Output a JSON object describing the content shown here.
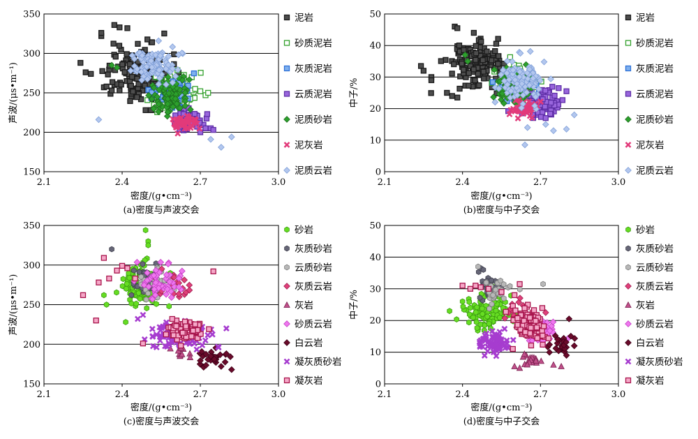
{
  "chart_data": [
    {
      "id": "a",
      "type": "scatter",
      "caption": "(a)密度与声波交会",
      "xlabel": "密度/(g•cm⁻³)",
      "ylabel": "声波/(μs•m⁻¹)",
      "xlim": [
        2.1,
        3.0
      ],
      "ylim": [
        150,
        350
      ],
      "xticks": [
        "2.1",
        "2.4",
        "2.7",
        "3.0"
      ],
      "yticks": [
        "150",
        "200",
        "250",
        "300",
        "350"
      ],
      "grid": "horizontal",
      "legend_position": "right",
      "series": [
        {
          "name": "泥岩",
          "marker": "square",
          "fill": "#4d4d4d",
          "stroke": "#1a1a1a",
          "center": [
            2.46,
            275
          ],
          "spread": [
            0.08,
            25
          ],
          "count": 150,
          "points": [
            [
              2.32,
              322
            ],
            [
              2.32,
              326
            ],
            [
              2.37,
              336
            ],
            [
              2.39,
              333
            ],
            [
              2.42,
              332
            ],
            [
              2.24,
              288
            ],
            [
              2.26,
              276
            ],
            [
              2.28,
              274
            ],
            [
              2.33,
              257
            ],
            [
              2.34,
              258
            ],
            [
              2.36,
              253
            ],
            [
              2.39,
              253
            ],
            [
              2.49,
              228
            ],
            [
              2.51,
              228
            ],
            [
              2.55,
              232
            ],
            [
              2.6,
              265
            ],
            [
              2.62,
              259
            ]
          ]
        },
        {
          "name": "砂质泥岩",
          "marker": "square",
          "fill": "#ffffff",
          "stroke": "#33a02c",
          "center": [
            2.6,
            250
          ],
          "spread": [
            0.05,
            14
          ],
          "count": 110,
          "points": [
            [
              2.7,
              252
            ],
            [
              2.72,
              247
            ],
            [
              2.73,
              250
            ],
            [
              2.68,
              255
            ]
          ]
        },
        {
          "name": "灰质泥岩",
          "marker": "square",
          "fill": "#7fb0ee",
          "stroke": "#2b6fd6",
          "center": [
            2.6,
            250
          ],
          "spread": [
            0.05,
            14
          ],
          "count": 50,
          "points": []
        },
        {
          "name": "云质泥岩",
          "marker": "square",
          "fill": "#9966dd",
          "stroke": "#5e2ea6",
          "center": [
            2.65,
            215
          ],
          "spread": [
            0.04,
            8
          ],
          "count": 70,
          "points": [
            [
              2.72,
              205
            ],
            [
              2.74,
              205
            ],
            [
              2.75,
              203
            ],
            [
              2.7,
              200
            ]
          ]
        },
        {
          "name": "泥质砂岩",
          "marker": "diamond",
          "fill": "#2ca02c",
          "stroke": "#1f6e1f",
          "center": [
            2.58,
            248
          ],
          "spread": [
            0.05,
            14
          ],
          "count": 90,
          "points": [
            [
              2.36,
              285
            ],
            [
              2.38,
              282
            ]
          ]
        },
        {
          "name": "泥灰岩",
          "marker": "x",
          "fill": "#e23a7a",
          "stroke": "#e23a7a",
          "center": [
            2.64,
            212
          ],
          "spread": [
            0.03,
            6
          ],
          "count": 50,
          "points": []
        },
        {
          "name": "泥质云岩",
          "marker": "diamond",
          "fill": "#b3c7ee",
          "stroke": "#7f9fd8",
          "center": [
            2.52,
            285
          ],
          "spread": [
            0.06,
            15
          ],
          "count": 110,
          "points": [
            [
              2.31,
              216
            ],
            [
              2.74,
              191
            ],
            [
              2.78,
              181
            ],
            [
              2.82,
              194
            ]
          ]
        }
      ]
    },
    {
      "id": "b",
      "type": "scatter",
      "caption": "(b)密度与中子交会",
      "xlabel": "密度/(g•cm⁻³)",
      "ylabel": "中子/%",
      "xlim": [
        2.1,
        3.0
      ],
      "ylim": [
        0,
        50
      ],
      "xticks": [
        "2.1",
        "2.4",
        "2.7",
        "3.0"
      ],
      "yticks": [
        "0",
        "10",
        "20",
        "30",
        "40",
        "50"
      ],
      "grid": "horizontal",
      "legend_position": "right",
      "series": [
        {
          "name": "泥岩",
          "marker": "square",
          "fill": "#4d4d4d",
          "stroke": "#1a1a1a",
          "center": [
            2.45,
            34
          ],
          "spread": [
            0.07,
            4.5
          ],
          "count": 150,
          "points": [
            [
              2.37,
              46
            ],
            [
              2.38,
              45.5
            ],
            [
              2.24,
              33.5
            ],
            [
              2.25,
              32
            ],
            [
              2.28,
              30
            ],
            [
              2.28,
              29
            ],
            [
              2.34,
              25
            ],
            [
              2.36,
              24
            ],
            [
              2.38,
              23.5
            ]
          ]
        },
        {
          "name": "砂质泥岩",
          "marker": "square",
          "fill": "#ffffff",
          "stroke": "#33a02c",
          "center": [
            2.6,
            28
          ],
          "spread": [
            0.05,
            3
          ],
          "count": 90,
          "points": []
        },
        {
          "name": "灰质泥岩",
          "marker": "square",
          "fill": "#7fb0ee",
          "stroke": "#2b6fd6",
          "center": [
            2.62,
            27
          ],
          "spread": [
            0.05,
            3
          ],
          "count": 40,
          "points": []
        },
        {
          "name": "云质泥岩",
          "marker": "square",
          "fill": "#9966dd",
          "stroke": "#5e2ea6",
          "center": [
            2.7,
            22
          ],
          "spread": [
            0.05,
            3
          ],
          "count": 70,
          "points": [
            [
              2.77,
              26.5
            ],
            [
              2.8,
              25.5
            ],
            [
              2.67,
              18
            ],
            [
              2.72,
              17
            ]
          ]
        },
        {
          "name": "泥质砂岩",
          "marker": "diamond",
          "fill": "#2ca02c",
          "stroke": "#1f6e1f",
          "center": [
            2.6,
            27
          ],
          "spread": [
            0.05,
            3.5
          ],
          "count": 90,
          "points": [
            [
              2.41,
              37
            ],
            [
              2.42,
              35
            ]
          ]
        },
        {
          "name": "泥灰岩",
          "marker": "x",
          "fill": "#e23a7a",
          "stroke": "#e23a7a",
          "center": [
            2.64,
            20
          ],
          "spread": [
            0.04,
            2
          ],
          "count": 50,
          "points": []
        },
        {
          "name": "泥质云岩",
          "marker": "diamond",
          "fill": "#b3c7ee",
          "stroke": "#7f9fd8",
          "center": [
            2.62,
            29
          ],
          "spread": [
            0.06,
            5
          ],
          "count": 110,
          "points": [
            [
              2.64,
              8.5
            ],
            [
              2.65,
              14
            ],
            [
              2.72,
              15
            ],
            [
              2.75,
              13
            ],
            [
              2.8,
              13.5
            ],
            [
              2.83,
              18
            ]
          ]
        }
      ]
    },
    {
      "id": "c",
      "type": "scatter",
      "caption": "(c)密度与声波交会",
      "xlabel": "密度/(g•cm⁻³)",
      "ylabel": "声波/(μs•m⁻¹)",
      "xlim": [
        2.1,
        3.0
      ],
      "ylim": [
        150,
        350
      ],
      "xticks": [
        "2.1",
        "2.4",
        "2.7",
        "3.0"
      ],
      "yticks": [
        "150",
        "200",
        "250",
        "300",
        "350"
      ],
      "grid": "horizontal",
      "legend_position": "right",
      "series": [
        {
          "name": "砂岩",
          "marker": "circle",
          "fill": "#66dd22",
          "stroke": "#3a9a10",
          "center": [
            2.47,
            275
          ],
          "spread": [
            0.05,
            18
          ],
          "count": 110,
          "points": [
            [
              2.49,
              344
            ],
            [
              2.5,
              330
            ],
            [
              2.5,
              325
            ],
            [
              2.33,
              262
            ],
            [
              2.34,
              250
            ],
            [
              2.58,
              248
            ]
          ]
        },
        {
          "name": "灰质砂岩",
          "marker": "circle",
          "fill": "#666677",
          "stroke": "#3d3d4a",
          "center": [
            2.5,
            285
          ],
          "spread": [
            0.04,
            12
          ],
          "count": 30,
          "points": [
            [
              2.36,
              320
            ],
            [
              2.53,
              302
            ]
          ]
        },
        {
          "name": "云质砂岩",
          "marker": "circle",
          "fill": "#b8b8b8",
          "stroke": "#7a7a7a",
          "center": [
            2.52,
            278
          ],
          "spread": [
            0.04,
            12
          ],
          "count": 30,
          "points": []
        },
        {
          "name": "灰质云岩",
          "marker": "diamond",
          "fill": "#e0407a",
          "stroke": "#a01e50",
          "center": [
            2.6,
            270
          ],
          "spread": [
            0.04,
            12
          ],
          "count": 20,
          "points": []
        },
        {
          "name": "灰岩",
          "marker": "triangle",
          "fill": "#c0508a",
          "stroke": "#7a1f4f",
          "center": [
            2.63,
            190
          ],
          "spread": [
            0.03,
            6
          ],
          "count": 10,
          "points": []
        },
        {
          "name": "砂质云岩",
          "marker": "diamond",
          "fill": "#ee77ee",
          "stroke": "#c43dc4",
          "center": [
            2.55,
            280
          ],
          "spread": [
            0.05,
            14
          ],
          "count": 50,
          "points": []
        },
        {
          "name": "白云岩",
          "marker": "diamond",
          "fill": "#6a0a2a",
          "stroke": "#3d0017",
          "center": [
            2.74,
            182
          ],
          "spread": [
            0.04,
            7
          ],
          "count": 25,
          "points": [
            [
              2.82,
              168
            ],
            [
              2.8,
              188
            ],
            [
              2.78,
              172
            ]
          ]
        },
        {
          "name": "凝灰质砂岩",
          "marker": "x",
          "fill": "#cc55ee",
          "stroke": "#a63ccf",
          "center": [
            2.62,
            212
          ],
          "spread": [
            0.07,
            10
          ],
          "count": 120,
          "points": [
            [
              2.46,
              232
            ],
            [
              2.48,
              237
            ],
            [
              2.8,
              220
            ],
            [
              2.77,
              196
            ]
          ]
        },
        {
          "name": "凝灰岩",
          "marker": "square",
          "fill": "#f5a8c8",
          "stroke": "#a8144c",
          "center": [
            2.64,
            218
          ],
          "spread": [
            0.04,
            8
          ],
          "count": 110,
          "points": [
            [
              2.25,
              262
            ],
            [
              2.3,
              230
            ],
            [
              2.31,
              278
            ],
            [
              2.33,
              309
            ],
            [
              2.35,
              283
            ],
            [
              2.38,
              293
            ],
            [
              2.4,
              299
            ],
            [
              2.42,
              296
            ],
            [
              2.45,
              283
            ],
            [
              2.48,
              201
            ],
            [
              2.75,
              292
            ]
          ]
        }
      ]
    },
    {
      "id": "d",
      "type": "scatter",
      "caption": "(d)密度与中子交会",
      "xlabel": "密度/(g•cm⁻³)",
      "ylabel": "中子/%",
      "xlim": [
        2.1,
        3.0
      ],
      "ylim": [
        0,
        50
      ],
      "xticks": [
        "2.1",
        "2.4",
        "2.7",
        "3.0"
      ],
      "yticks": [
        "0",
        "10",
        "20",
        "30",
        "40",
        "50"
      ],
      "grid": "horizontal",
      "legend_position": "right",
      "series": [
        {
          "name": "砂岩",
          "marker": "circle",
          "fill": "#66dd22",
          "stroke": "#3a9a10",
          "center": [
            2.5,
            23
          ],
          "spread": [
            0.06,
            3.5
          ],
          "count": 110,
          "points": [
            [
              2.35,
              23
            ],
            [
              2.4,
              26
            ],
            [
              2.43,
              24
            ]
          ]
        },
        {
          "name": "灰质砂岩",
          "marker": "circle",
          "fill": "#666677",
          "stroke": "#3d3d4a",
          "center": [
            2.5,
            31
          ],
          "spread": [
            0.03,
            3
          ],
          "count": 30,
          "points": [
            [
              2.47,
              36.5
            ],
            [
              2.48,
              36
            ]
          ]
        },
        {
          "name": "云质砂岩",
          "marker": "circle",
          "fill": "#b8b8b8",
          "stroke": "#7a7a7a",
          "center": [
            2.52,
            29
          ],
          "spread": [
            0.04,
            3
          ],
          "count": 30,
          "points": [
            [
              2.46,
              37
            ],
            [
              2.71,
              31.5
            ]
          ]
        },
        {
          "name": "灰质云岩",
          "marker": "diamond",
          "fill": "#e0407a",
          "stroke": "#a01e50",
          "center": [
            2.62,
            22
          ],
          "spread": [
            0.04,
            3
          ],
          "count": 20,
          "points": [
            [
              2.67,
              23
            ],
            [
              2.72,
              22.5
            ]
          ]
        },
        {
          "name": "灰岩",
          "marker": "triangle",
          "fill": "#c0508a",
          "stroke": "#7a1f4f",
          "center": [
            2.66,
            7.5
          ],
          "spread": [
            0.04,
            1.5
          ],
          "count": 18,
          "points": [
            [
              2.6,
              5.5
            ],
            [
              2.62,
              5
            ],
            [
              2.75,
              6
            ],
            [
              2.78,
              5.5
            ]
          ]
        },
        {
          "name": "砂质云岩",
          "marker": "diamond",
          "fill": "#ee77ee",
          "stroke": "#c43dc4",
          "center": [
            2.7,
            16.5
          ],
          "spread": [
            0.04,
            2.5
          ],
          "count": 60,
          "points": []
        },
        {
          "name": "白云岩",
          "marker": "diamond",
          "fill": "#6a0a2a",
          "stroke": "#3d0017",
          "center": [
            2.78,
            12
          ],
          "spread": [
            0.04,
            2
          ],
          "count": 25,
          "points": [
            [
              2.81,
              20.5
            ],
            [
              2.83,
              12
            ],
            [
              2.8,
              9
            ]
          ]
        },
        {
          "name": "凝灰质砂岩",
          "marker": "x",
          "fill": "#cc55ee",
          "stroke": "#a63ccf",
          "center": [
            2.52,
            13
          ],
          "spread": [
            0.04,
            2.5
          ],
          "count": 70,
          "points": [
            [
              2.52,
              10
            ]
          ]
        },
        {
          "name": "凝灰岩",
          "marker": "square",
          "fill": "#f5a8c8",
          "stroke": "#a8144c",
          "center": [
            2.66,
            18.5
          ],
          "spread": [
            0.04,
            3.5
          ],
          "count": 90,
          "points": [
            [
              2.4,
              31
            ],
            [
              2.43,
              30
            ],
            [
              2.45,
              31
            ],
            [
              2.47,
              30.5
            ],
            [
              2.5,
              30
            ],
            [
              2.55,
              29
            ],
            [
              2.6,
              28
            ],
            [
              2.62,
              31.5
            ]
          ]
        }
      ]
    }
  ]
}
